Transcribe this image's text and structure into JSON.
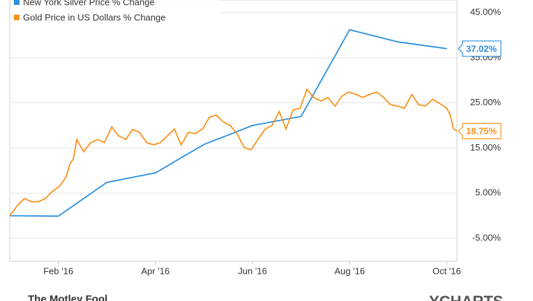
{
  "chart_data": {
    "type": "line",
    "xlim": [
      0,
      9.21
    ],
    "xticks": [
      {
        "value": 1,
        "label": "Feb '16"
      },
      {
        "value": 3,
        "label": "Apr '16"
      },
      {
        "value": 5,
        "label": "Jun '16"
      },
      {
        "value": 7,
        "label": "Aug '16"
      },
      {
        "value": 9,
        "label": "Oct '16"
      }
    ],
    "ylim": [
      -10.1,
      47.8
    ],
    "yticks": [
      {
        "value": -5,
        "label": "-5.00%"
      },
      {
        "value": 5,
        "label": "5.00%"
      },
      {
        "value": 15,
        "label": "15.00%"
      },
      {
        "value": 25,
        "label": "25.00%"
      },
      {
        "value": 35,
        "label": "35.00%"
      },
      {
        "value": 45,
        "label": "45.00%"
      }
    ],
    "grid": true,
    "legend": "upper left",
    "series": [
      {
        "name": "New York Silver Price % Change",
        "color": "#2b8fde",
        "x": [
          0,
          1,
          2,
          3,
          4,
          5,
          6,
          7,
          8,
          9
        ],
        "values": [
          0,
          -0.1,
          7.4,
          9.5,
          15.8,
          20,
          22,
          41.2,
          38.5,
          37.02
        ],
        "last_label": "37.02%"
      },
      {
        "name": "Gold Price in US Dollars % Change",
        "color": "#f7921e",
        "x": [
          0,
          0.16,
          0.3,
          0.45,
          0.59,
          0.73,
          0.88,
          1.02,
          1.16,
          1.24,
          1.31,
          1.38,
          1.52,
          1.67,
          1.81,
          1.95,
          2.1,
          2.24,
          2.39,
          2.53,
          2.67,
          2.82,
          2.96,
          3.1,
          3.25,
          3.39,
          3.53,
          3.68,
          3.82,
          3.97,
          4.11,
          4.25,
          4.4,
          4.54,
          4.68,
          4.83,
          4.97,
          5.11,
          5.26,
          5.4,
          5.55,
          5.69,
          5.83,
          5.98,
          6.12,
          6.26,
          6.41,
          6.55,
          6.7,
          6.84,
          6.98,
          7.13,
          7.27,
          7.41,
          7.56,
          7.7,
          7.84,
          7.99,
          8.13,
          8.28,
          8.42,
          8.56,
          8.71,
          8.85,
          9.0,
          9.07,
          9.14,
          9.21
        ],
        "values": [
          0,
          2.3,
          3.8,
          3.1,
          3.1,
          3.8,
          5.4,
          6.5,
          8.5,
          11.5,
          12.6,
          16.9,
          14.2,
          16.2,
          16.9,
          16.2,
          19.7,
          17.7,
          16.9,
          19.1,
          18.5,
          16.2,
          15.7,
          16.2,
          17.7,
          19.2,
          15.7,
          18.5,
          18.2,
          19.2,
          21.8,
          22.3,
          20.8,
          20,
          18.2,
          15.1,
          14.6,
          16.9,
          19.2,
          20,
          23.1,
          19.2,
          23.4,
          23.8,
          28,
          26.2,
          25.4,
          26.2,
          24.3,
          26.5,
          27.4,
          26.9,
          26.2,
          26.9,
          27.4,
          26.2,
          24.6,
          24.3,
          23.8,
          26.9,
          24.6,
          24.3,
          25.8,
          24.9,
          23.8,
          22.3,
          19.2,
          18.75
        ],
        "last_label": "18.75%"
      }
    ],
    "credits": {
      "left": "The Motley Fool",
      "right": "YCHARTS"
    }
  }
}
